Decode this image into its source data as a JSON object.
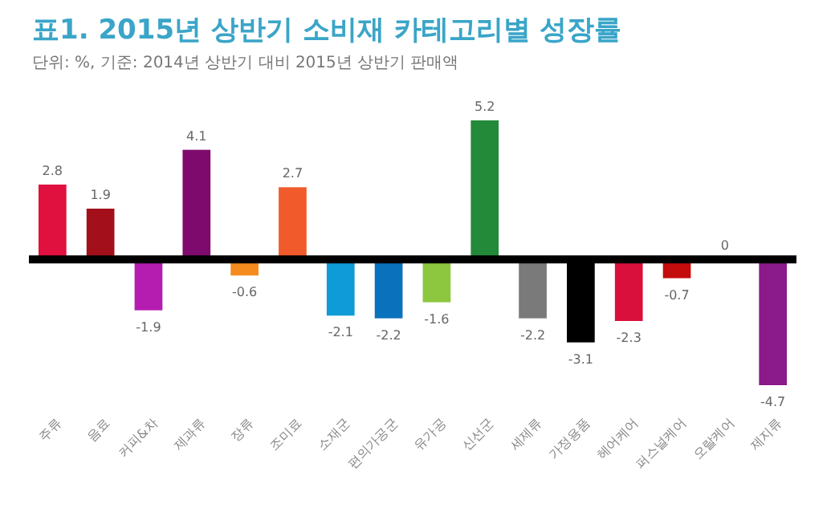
{
  "chart_data": {
    "type": "bar",
    "title": "표1. 2015년 상반기 소비재 카테고리별 성장률",
    "subtitle": "단위: %, 기준: 2014년 상반기 대비 2015년 상반기 판매액",
    "categories": [
      "주류",
      "음료",
      "커피&차",
      "제과류",
      "장류",
      "조미료",
      "소재군",
      "편의가공군",
      "유가공",
      "신선군",
      "세제류",
      "가정용품",
      "헤어케어",
      "퍼스널케어",
      "오랄케어",
      "제지류"
    ],
    "values": [
      2.8,
      1.9,
      -1.9,
      4.1,
      -0.6,
      2.7,
      -2.1,
      -2.2,
      -1.6,
      5.2,
      -2.2,
      -3.1,
      -2.3,
      -0.7,
      0,
      -4.7
    ],
    "colors": [
      "#e0113e",
      "#a3101c",
      "#b41db0",
      "#7f0a6e",
      "#f58b1f",
      "#f15a2a",
      "#0f9bd7",
      "#0a72bc",
      "#8dc63f",
      "#238a3a",
      "#7a7a7a",
      "#000000",
      "#d9103c",
      "#c40c0c",
      "#ffffff",
      "#8b1a8a"
    ],
    "data_labels": true
  }
}
